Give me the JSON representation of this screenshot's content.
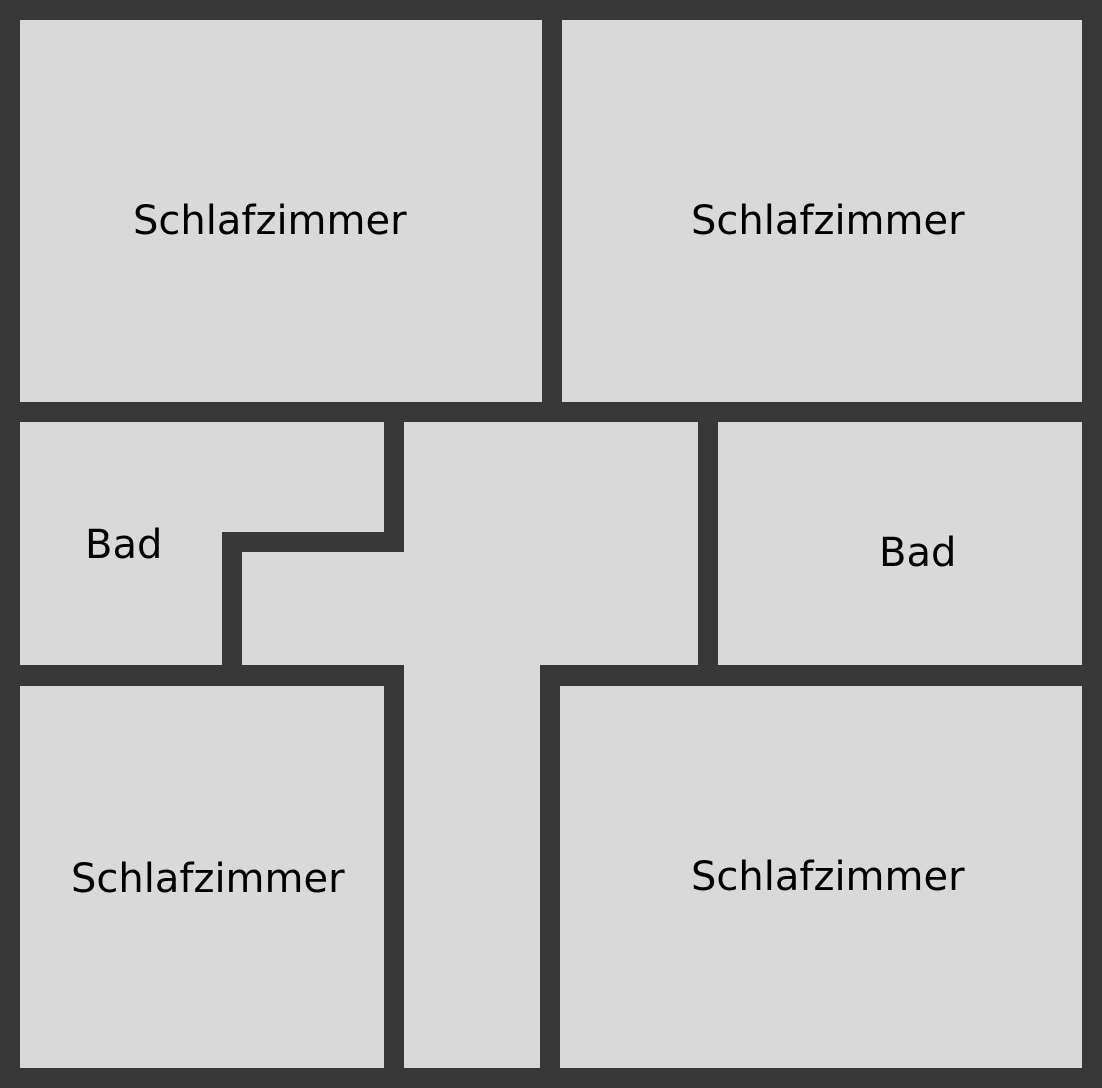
{
  "floorplan": {
    "wall_color": "#383838",
    "floor_color": "#d9d9d9",
    "text_color": "#000000",
    "rooms": {
      "bedroom_top_left": "Schlafzimmer",
      "bedroom_top_right": "Schlafzimmer",
      "bathroom_left": "Bad",
      "bathroom_right": "Bad",
      "bedroom_bottom_left": "Schlafzimmer",
      "bedroom_bottom_right": "Schlafzimmer"
    }
  }
}
